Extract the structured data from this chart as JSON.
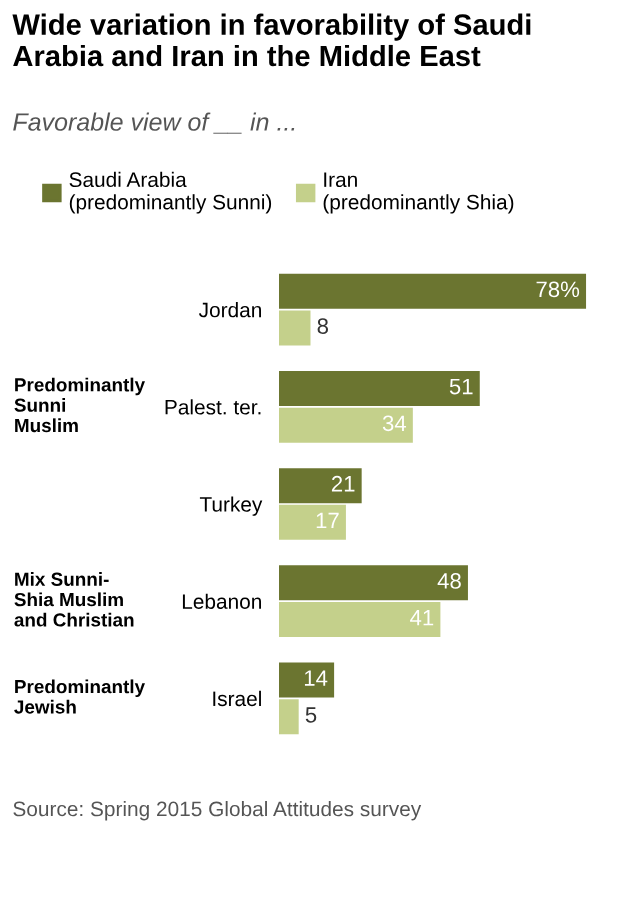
{
  "chart_data": {
    "type": "bar",
    "orientation": "horizontal",
    "title": "Wide variation in favorability of Saudi\nArabia and Iran in the Middle East",
    "subtitle": "Favorable view of __ in ...",
    "categories": [
      "Jordan",
      "Palest. ter.",
      "Turkey",
      "Lebanon",
      "Israel"
    ],
    "series": [
      {
        "name": "Saudi Arabia\n(predominantly Sunni)",
        "color": "#6b7530",
        "values": [
          78,
          51,
          21,
          48,
          14
        ],
        "value_labels": [
          "78%",
          "51",
          "21",
          "48",
          "14"
        ]
      },
      {
        "name": "Iran\n(predominantly Shia)",
        "color": "#c4d08b",
        "values": [
          8,
          34,
          17,
          41,
          5
        ],
        "value_labels": [
          "8",
          "34",
          "17",
          "41",
          "5"
        ]
      }
    ],
    "legend": "top left",
    "annotations": [
      "Predominantly\nSunni\nMuslim",
      "Mix Sunni-\nShia Muslim\nand Christian",
      "Predominantly\nJewish",
      "Source: Spring 2015 Global Attitudes survey"
    ]
  }
}
